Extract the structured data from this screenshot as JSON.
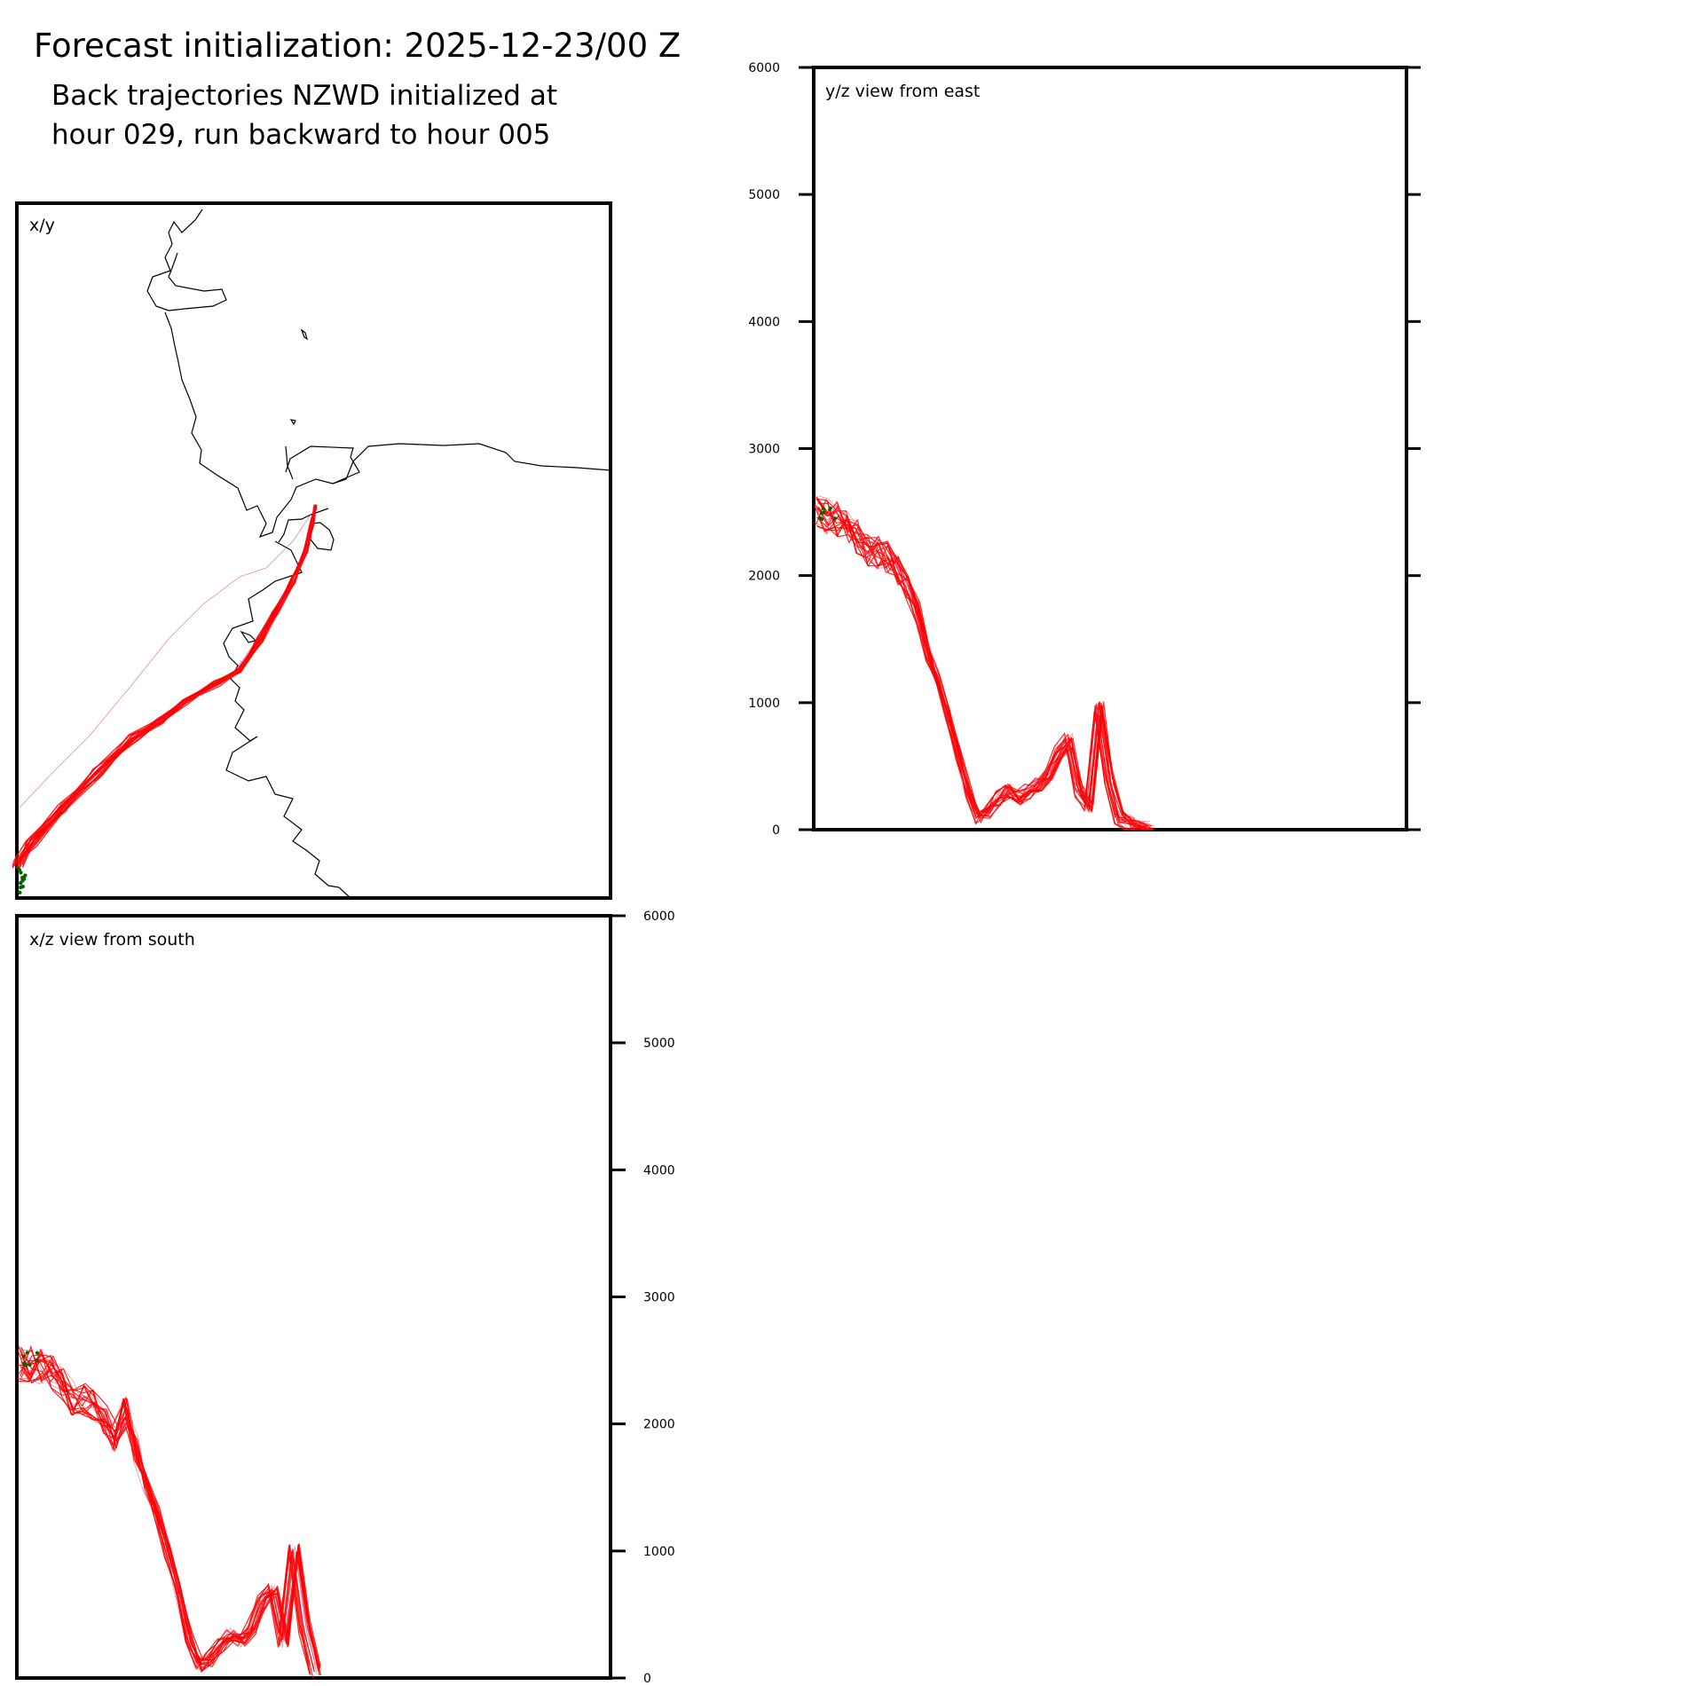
{
  "header": {
    "title": "Forecast initialization: 2025-12-23/00 Z",
    "subtitle_line1": "Back trajectories NZWD initialized at",
    "subtitle_line2": "hour 029, run backward to hour 005"
  },
  "colors": {
    "trajectory_primary": "#ff0000",
    "trajectory_faint": "#dc3c64",
    "endpoint_marker": "#006400",
    "coastline": "#000000"
  },
  "chart_data": [
    {
      "type": "line",
      "panel": "x/y",
      "title": "x/y",
      "description_of_series": "ensemble of back trajectories in plan view plus coastline",
      "xlabel": "",
      "ylabel": "",
      "grid": false
    },
    {
      "type": "line",
      "panel": "y/z",
      "title": "y/z view from east",
      "xlabel": "",
      "ylabel": "",
      "ylim": [
        0,
        6000
      ],
      "yticks": [
        "0",
        "1000",
        "2000",
        "3000",
        "4000",
        "5000",
        "6000"
      ],
      "grid": false,
      "main_series_height": [
        2480,
        2470,
        2440,
        2400,
        2300,
        2200,
        2180,
        2150,
        2050,
        1900,
        1700,
        1400,
        1200,
        900,
        600,
        300,
        100,
        150,
        250,
        300,
        250,
        300,
        350,
        450,
        600,
        700,
        300,
        200,
        950,
        400,
        100,
        50,
        20,
        10
      ]
    },
    {
      "type": "line",
      "panel": "x/z",
      "title": "x/z view from south",
      "xlabel": "",
      "ylabel": "",
      "ylim": [
        0,
        6000
      ],
      "yticks": [
        "0",
        "1000",
        "2000",
        "3000",
        "4000",
        "5000",
        "6000"
      ],
      "grid": false,
      "main_series_height": [
        2480,
        2470,
        2450,
        2400,
        2300,
        2200,
        2200,
        2150,
        2050,
        1900,
        2100,
        1800,
        1500,
        1300,
        1000,
        700,
        300,
        100,
        150,
        250,
        350,
        300,
        400,
        600,
        700,
        300,
        1000,
        400,
        50
      ]
    }
  ]
}
